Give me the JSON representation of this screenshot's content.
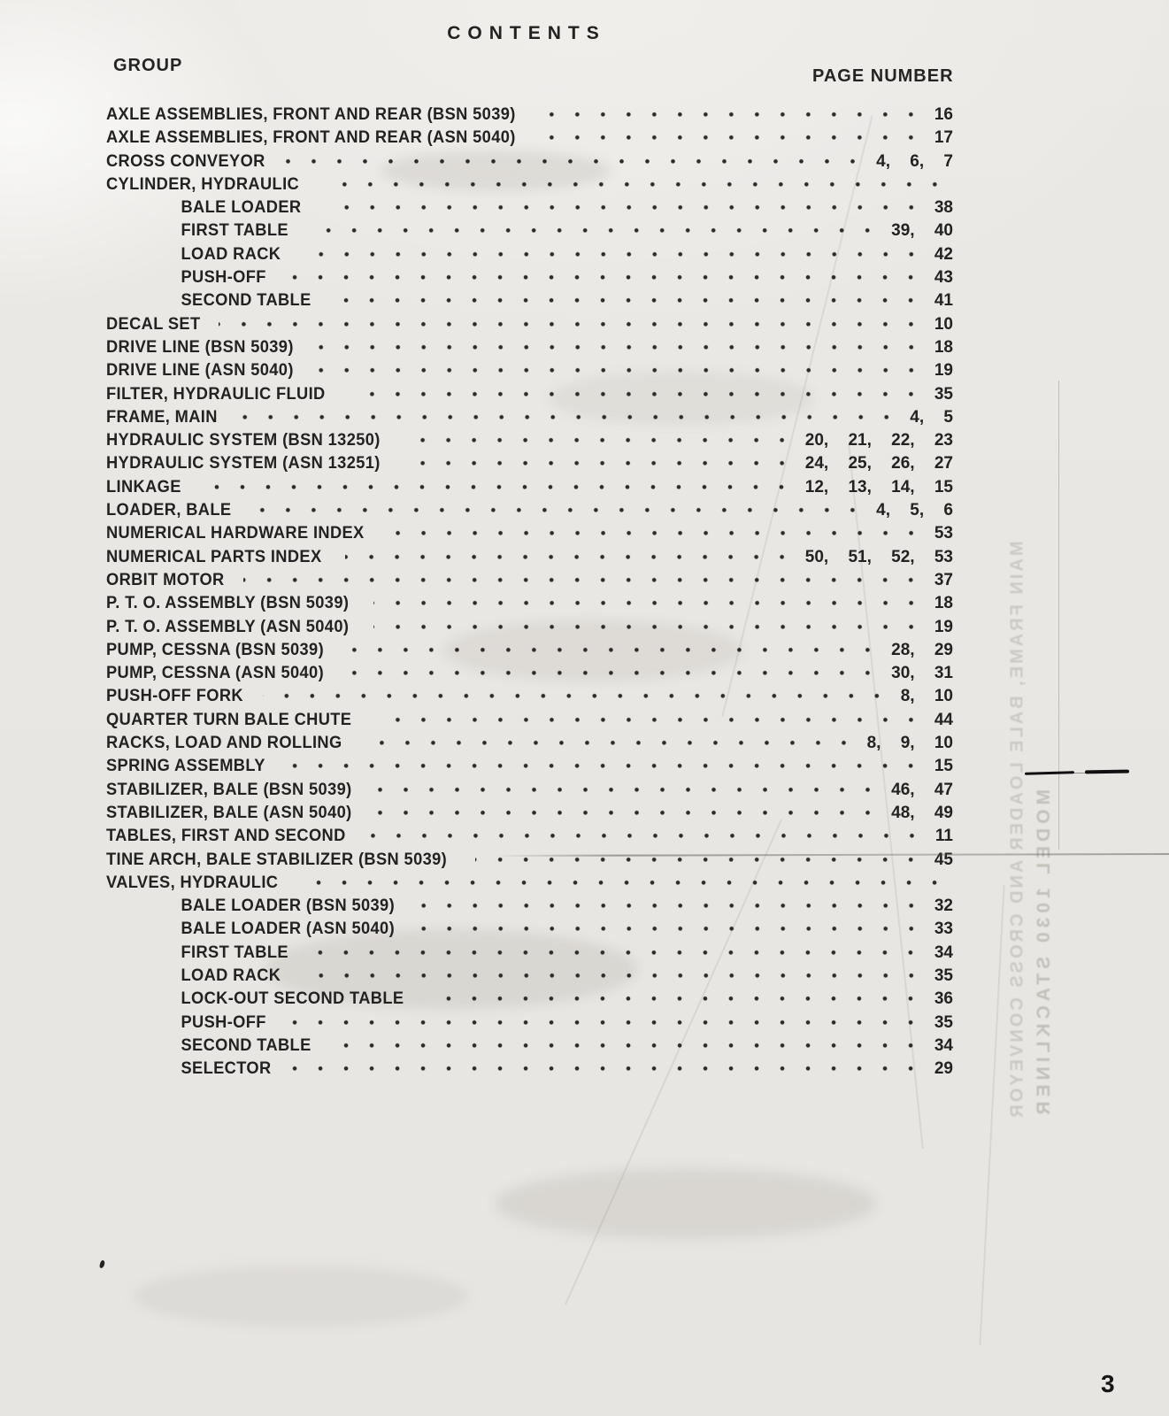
{
  "page": {
    "title": "CONTENTS",
    "group_header": "GROUP",
    "page_number_header": "PAGE NUMBER",
    "footer_page_number": "3"
  },
  "toc": {
    "entries": [
      {
        "label": "AXLE ASSEMBLIES, FRONT AND REAR (BSN 5039)",
        "pages": "16",
        "indent": 0
      },
      {
        "label": "AXLE ASSEMBLIES, FRONT AND REAR (ASN 5040)",
        "pages": "17",
        "indent": 0
      },
      {
        "label": "CROSS CONVEYOR",
        "pages": "4, 6, 7",
        "indent": 0
      },
      {
        "label": "CYLINDER, HYDRAULIC",
        "pages": "",
        "indent": 0
      },
      {
        "label": "BALE LOADER",
        "pages": "38",
        "indent": 1
      },
      {
        "label": "FIRST TABLE",
        "pages": "39, 40",
        "indent": 1
      },
      {
        "label": "LOAD RACK",
        "pages": "42",
        "indent": 1
      },
      {
        "label": "PUSH-OFF",
        "pages": "43",
        "indent": 1
      },
      {
        "label": "SECOND TABLE",
        "pages": "41",
        "indent": 1
      },
      {
        "label": "DECAL SET",
        "pages": "10",
        "indent": 0
      },
      {
        "label": "DRIVE LINE (BSN 5039)",
        "pages": "18",
        "indent": 0
      },
      {
        "label": "DRIVE LINE (ASN 5040)",
        "pages": "19",
        "indent": 0
      },
      {
        "label": "FILTER, HYDRAULIC FLUID",
        "pages": "35",
        "indent": 0
      },
      {
        "label": "FRAME, MAIN",
        "pages": "4, 5",
        "indent": 0
      },
      {
        "label": "HYDRAULIC SYSTEM (BSN 13250)",
        "pages": "20, 21, 22, 23",
        "indent": 0
      },
      {
        "label": "HYDRAULIC SYSTEM (ASN 13251)",
        "pages": "24, 25, 26, 27",
        "indent": 0
      },
      {
        "label": "LINKAGE",
        "pages": "12, 13, 14, 15",
        "indent": 0
      },
      {
        "label": "LOADER, BALE",
        "pages": "4, 5, 6",
        "indent": 0
      },
      {
        "label": "NUMERICAL HARDWARE INDEX",
        "pages": "53",
        "indent": 0
      },
      {
        "label": "NUMERICAL PARTS INDEX",
        "pages": "50, 51, 52, 53",
        "indent": 0
      },
      {
        "label": "ORBIT MOTOR",
        "pages": "37",
        "indent": 0
      },
      {
        "label": "P. T. O. ASSEMBLY (BSN 5039)",
        "pages": "18",
        "indent": 0
      },
      {
        "label": "P. T. O. ASSEMBLY (ASN 5040)",
        "pages": "19",
        "indent": 0
      },
      {
        "label": "PUMP, CESSNA (BSN 5039)",
        "pages": "28, 29",
        "indent": 0
      },
      {
        "label": "PUMP, CESSNA (ASN 5040)",
        "pages": "30, 31",
        "indent": 0
      },
      {
        "label": "PUSH-OFF FORK",
        "pages": "8, 10",
        "indent": 0
      },
      {
        "label": "QUARTER TURN BALE CHUTE",
        "pages": "44",
        "indent": 0
      },
      {
        "label": "RACKS, LOAD AND ROLLING",
        "pages": "8, 9, 10",
        "indent": 0
      },
      {
        "label": "SPRING ASSEMBLY",
        "pages": "15",
        "indent": 0
      },
      {
        "label": "STABILIZER, BALE (BSN 5039)",
        "pages": "46, 47",
        "indent": 0
      },
      {
        "label": "STABILIZER, BALE (ASN 5040)",
        "pages": "48, 49",
        "indent": 0
      },
      {
        "label": "TABLES, FIRST AND SECOND",
        "pages": "11",
        "indent": 0
      },
      {
        "label": "TINE ARCH, BALE STABILIZER (BSN 5039)",
        "pages": "45",
        "indent": 0
      },
      {
        "label": "VALVES, HYDRAULIC",
        "pages": "",
        "indent": 0
      },
      {
        "label": "BALE LOADER (BSN 5039)",
        "pages": "32",
        "indent": 1
      },
      {
        "label": "BALE LOADER (ASN 5040)",
        "pages": "33",
        "indent": 1
      },
      {
        "label": "FIRST TABLE",
        "pages": "34",
        "indent": 1
      },
      {
        "label": "LOAD RACK",
        "pages": "35",
        "indent": 1
      },
      {
        "label": "LOCK-OUT SECOND TABLE",
        "pages": "36",
        "indent": 1
      },
      {
        "label": "PUSH-OFF",
        "pages": "35",
        "indent": 1
      },
      {
        "label": "SECOND TABLE",
        "pages": "34",
        "indent": 1
      },
      {
        "label": "SELECTOR",
        "pages": "29",
        "indent": 1
      }
    ]
  },
  "bleed_through": {
    "vertical_line_1": "MODEL 1030 STACKLINER",
    "vertical_line_2": "MAIN FRAME, BALE LOADER AND CROSS CONVEYOR"
  },
  "colors": {
    "paper": "#e9e7e3",
    "ink": "#1e1e1e",
    "ghost_ink": "#9e9b92"
  }
}
